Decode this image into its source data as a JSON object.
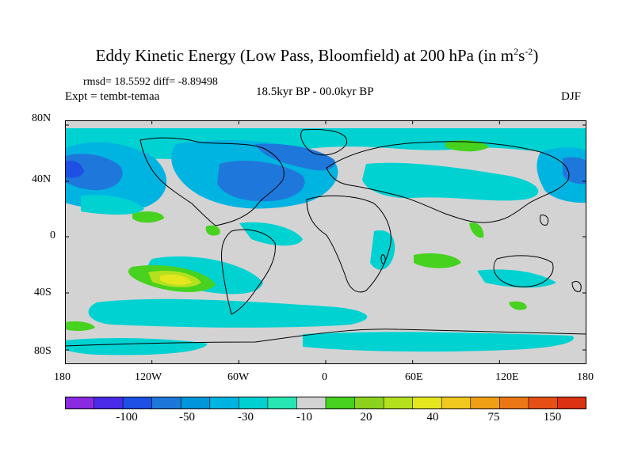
{
  "header": {
    "title_main": "Eddy Kinetic Energy (Low Pass, Bloomfield) at 200 hPa (in m",
    "title_sup1": "2",
    "title_mid": "s",
    "title_sup2": "-2",
    "title_end": ")",
    "stats": "rmsd= 18.5592 diff= -8.89498",
    "expt": "Expt = tembt-temaa",
    "period": "18.5kyr BP - 00.0kyr BP",
    "season": "DJF"
  },
  "map": {
    "lat_ticks": [
      "80N",
      "40N",
      "0",
      "40S",
      "80S"
    ],
    "lon_ticks": [
      "180",
      "120W",
      "60W",
      "0",
      "60E",
      "120E",
      "180"
    ],
    "colors": {
      "land_coast": "#000000",
      "neutral": "#d3d3d3"
    }
  },
  "colorbar": {
    "colors": [
      "#8a2be2",
      "#4b2be8",
      "#1e50e6",
      "#1e78dc",
      "#0096dc",
      "#00b4e1",
      "#00d2d2",
      "#28e6b4",
      "#d3d3d3",
      "#46d21e",
      "#8cd21e",
      "#b4e11e",
      "#e6e61e",
      "#f0c81e",
      "#f0a014",
      "#eb7814",
      "#e65014",
      "#dc3214"
    ],
    "labels": [
      "-100",
      "-50",
      "-30",
      "-10",
      "20",
      "40",
      "75",
      "150"
    ]
  }
}
